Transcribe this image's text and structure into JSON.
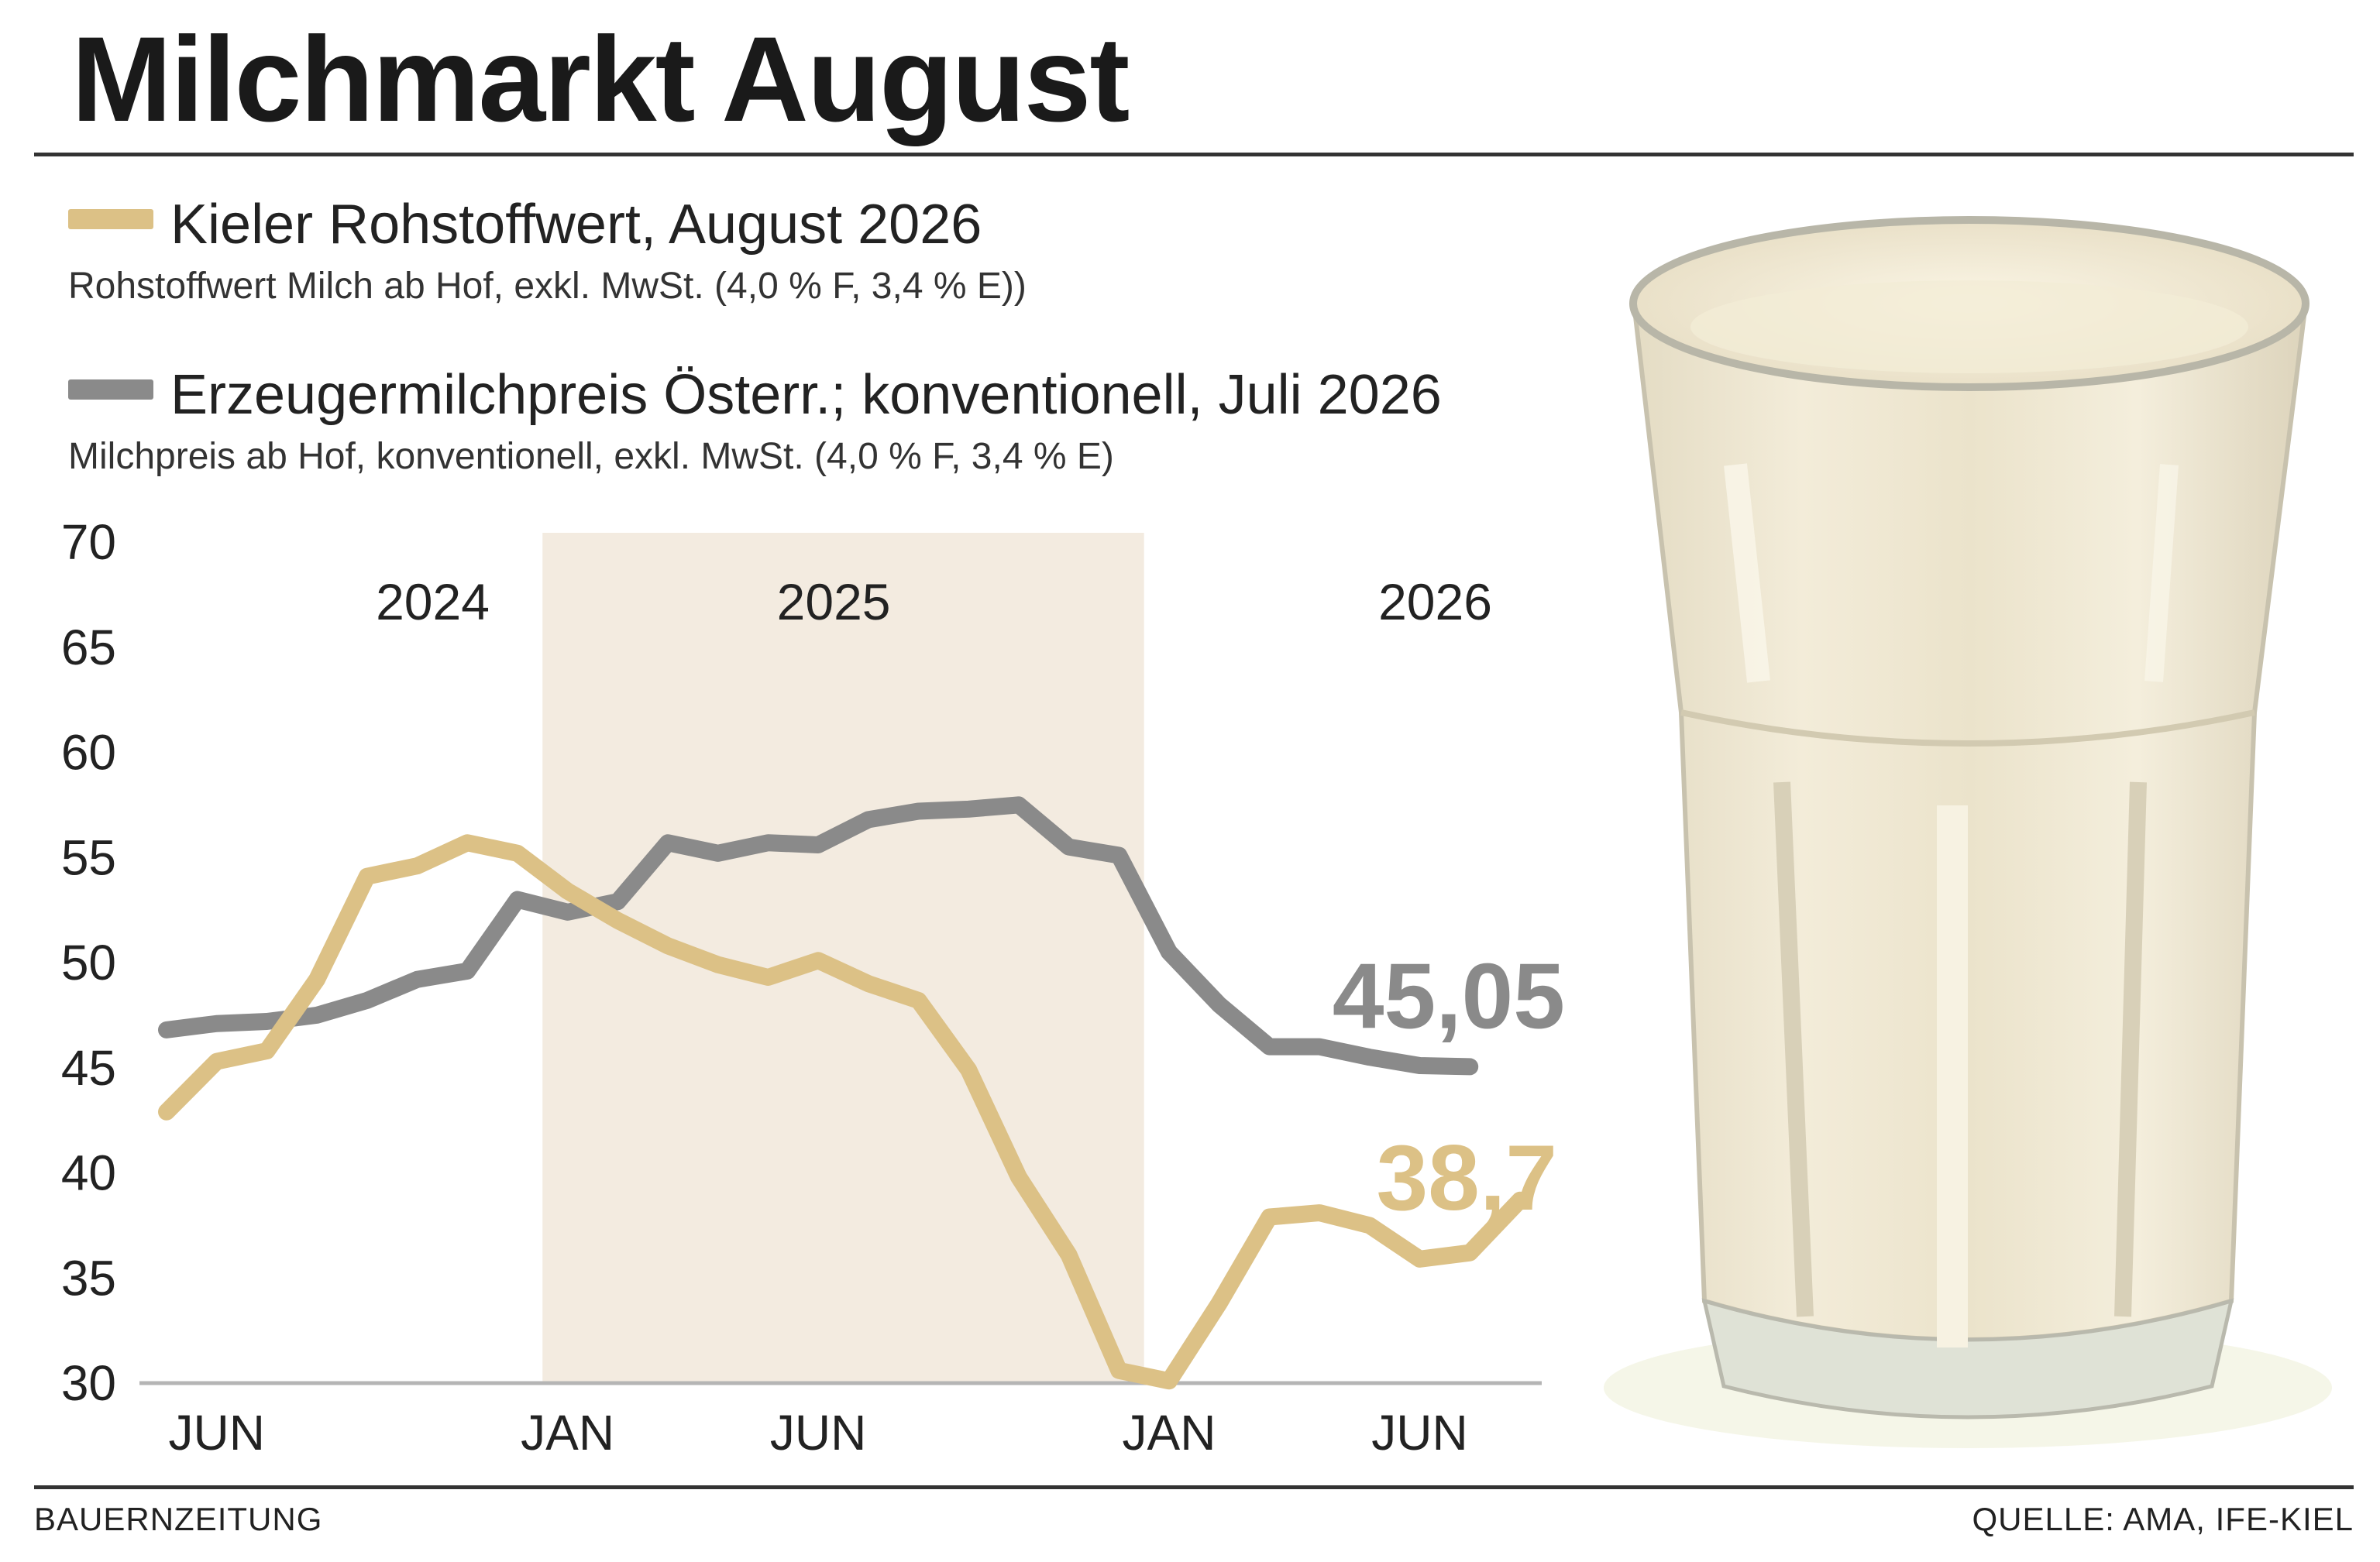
{
  "title": "Milchmarkt August",
  "legend": [
    {
      "label": "Kieler Rohstoffwert, August 2026",
      "sublabel": "Rohstoffwert Milch ab Hof, exkl. MwSt. (4,0 % F, 3,4 % E))",
      "color": "#dcc186"
    },
    {
      "label": "Erzeugermilchpreis Österr.; konventionell, Juli 2026",
      "sublabel": "Milchpreis ab Hof, konventionell, exkl. MwSt. (4,0 % F, 3,4 % E)",
      "color": "#8a8a8a"
    }
  ],
  "footer": {
    "left": "BAUERNZEITUNG",
    "right": "QUELLE: AMA, IFE-KIEL"
  },
  "chart_data": {
    "type": "line",
    "ylim": [
      30,
      70
    ],
    "yticks": [
      "70",
      "65",
      "60",
      "55",
      "50",
      "45",
      "40",
      "35",
      "30"
    ],
    "x_months": [
      "2024-05",
      "2024-06",
      "2024-07",
      "2024-08",
      "2024-09",
      "2024-10",
      "2024-11",
      "2024-12",
      "2025-01",
      "2025-02",
      "2025-03",
      "2025-04",
      "2025-05",
      "2025-06",
      "2025-07",
      "2025-08",
      "2025-09",
      "2025-10",
      "2025-11",
      "2025-12",
      "2026-01",
      "2026-02",
      "2026-03",
      "2026-04",
      "2026-05",
      "2026-06",
      "2026-07",
      "2026-08"
    ],
    "xtick_labels": [
      {
        "label": "JUN",
        "month": "2024-06"
      },
      {
        "label": "JAN",
        "month": "2025-01"
      },
      {
        "label": "JUN",
        "month": "2025-06"
      },
      {
        "label": "JAN",
        "month": "2026-01"
      },
      {
        "label": "JUN",
        "month": "2026-06"
      }
    ],
    "year_labels": [
      {
        "label": "2024",
        "month": "2024-10"
      },
      {
        "label": "2025",
        "month": "2025-06"
      },
      {
        "label": "2026",
        "month": "2026-06"
      }
    ],
    "shaded_range": [
      "2024-12",
      "2025-12"
    ],
    "shade_color": "#f3ebe0",
    "series": [
      {
        "name": "Kieler Rohstoffwert, August 2026",
        "color": "#dcc186",
        "values": [
          42.9,
          45.3,
          45.8,
          49.2,
          54.1,
          54.6,
          55.7,
          55.2,
          53.4,
          52.0,
          50.8,
          49.9,
          49.3,
          50.1,
          49.0,
          48.2,
          44.9,
          39.8,
          36.1,
          30.6,
          30.1,
          33.8,
          37.9,
          38.1,
          37.5,
          35.9,
          36.2,
          38.7
        ]
      },
      {
        "name": "Erzeugermilchpreis Österr.; konventionell, Juli 2026",
        "color": "#8a8a8a",
        "values": [
          46.8,
          47.1,
          47.2,
          47.5,
          48.2,
          49.2,
          49.6,
          53.0,
          52.4,
          52.9,
          55.7,
          55.2,
          55.7,
          55.6,
          56.8,
          57.2,
          57.3,
          57.5,
          55.5,
          55.1,
          50.5,
          48.0,
          46.0,
          46.0,
          45.5,
          45.1,
          45.05
        ]
      }
    ],
    "annotations": [
      {
        "text": "45,05",
        "series": 1,
        "color": "#8a8a8a"
      },
      {
        "text": "38,7",
        "series": 0,
        "color": "#dcc186"
      }
    ]
  }
}
